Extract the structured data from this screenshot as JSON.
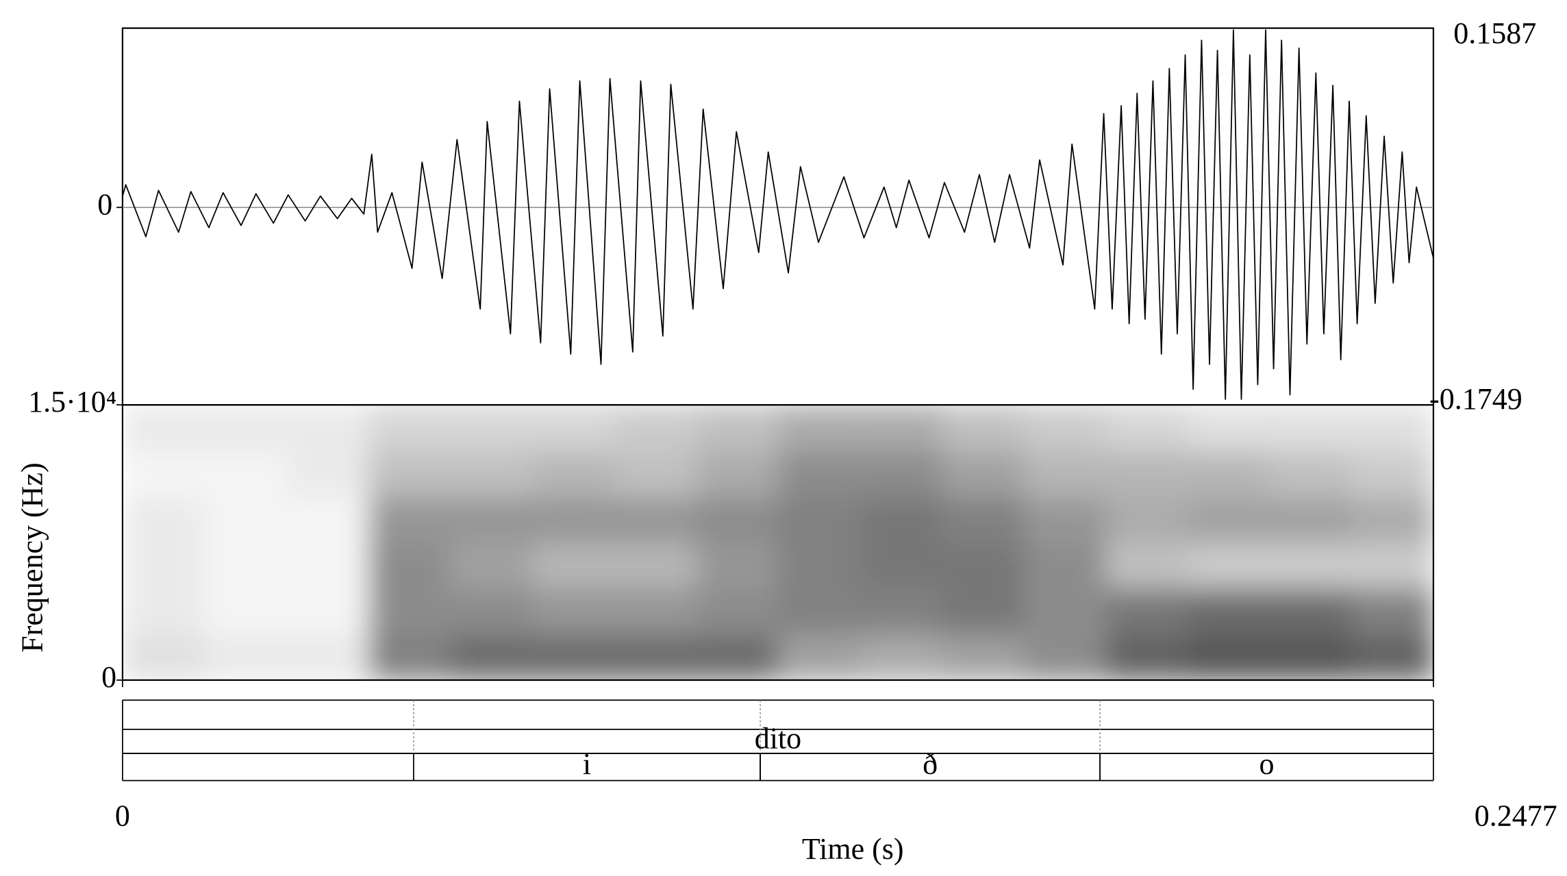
{
  "chart_data": [
    {
      "type": "line",
      "xlim": [
        0,
        0.2477
      ],
      "ylim": [
        -0.1749,
        0.1587
      ],
      "yticks": [
        0
      ],
      "color": "#000000",
      "x": [
        0,
        0.0006,
        0.0044,
        0.0068,
        0.0106,
        0.0129,
        0.0163,
        0.019,
        0.0224,
        0.0252,
        0.0285,
        0.0313,
        0.0345,
        0.0374,
        0.0406,
        0.0433,
        0.0456,
        0.0471,
        0.0482,
        0.0509,
        0.0547,
        0.0566,
        0.0604,
        0.0632,
        0.0676,
        0.0689,
        0.0733,
        0.075,
        0.079,
        0.0807,
        0.0847,
        0.0864,
        0.0904,
        0.0921,
        0.0964,
        0.0979,
        0.1021,
        0.1036,
        0.1078,
        0.1097,
        0.1135,
        0.116,
        0.1202,
        0.122,
        0.1258,
        0.1281,
        0.1315,
        0.1363,
        0.1401,
        0.1439,
        0.1462,
        0.1486,
        0.1524,
        0.1553,
        0.1591,
        0.1619,
        0.1648,
        0.1676,
        0.1714,
        0.1733,
        0.1777,
        0.1794,
        0.1837,
        0.1854,
        0.187,
        0.1887,
        0.1902,
        0.1917,
        0.1932,
        0.1947,
        0.1963,
        0.1978,
        0.1993,
        0.2008,
        0.2023,
        0.2039,
        0.2054,
        0.2069,
        0.2084,
        0.2099,
        0.2114,
        0.213,
        0.2145,
        0.216,
        0.2175,
        0.219,
        0.2206,
        0.2223,
        0.2238,
        0.2255,
        0.227,
        0.2287,
        0.2302,
        0.2318,
        0.2333,
        0.235,
        0.2367,
        0.2384,
        0.2401,
        0.2418,
        0.2431,
        0.2445,
        0.2477
      ],
      "values": [
        0.01,
        0.02,
        -0.026,
        0.015,
        -0.022,
        0.014,
        -0.018,
        0.013,
        -0.016,
        0.012,
        -0.014,
        0.011,
        -0.012,
        0.01,
        -0.01,
        0.008,
        -0.006,
        0.047,
        -0.022,
        0.013,
        -0.054,
        0.04,
        -0.063,
        0.06,
        -0.09,
        0.076,
        -0.112,
        0.094,
        -0.12,
        0.105,
        -0.13,
        0.112,
        -0.139,
        0.114,
        -0.128,
        0.112,
        -0.114,
        0.109,
        -0.09,
        0.087,
        -0.072,
        0.067,
        -0.04,
        0.049,
        -0.058,
        0.036,
        -0.031,
        0.027,
        -0.027,
        0.018,
        -0.018,
        0.024,
        -0.027,
        0.022,
        -0.022,
        0.029,
        -0.031,
        0.029,
        -0.036,
        0.042,
        -0.051,
        0.056,
        -0.09,
        0.083,
        -0.09,
        0.09,
        -0.103,
        0.101,
        -0.099,
        0.112,
        -0.13,
        0.123,
        -0.112,
        0.135,
        -0.161,
        0.148,
        -0.139,
        0.139,
        -0.17,
        0.157,
        -0.17,
        0.135,
        -0.157,
        0.157,
        -0.143,
        0.148,
        -0.166,
        0.141,
        -0.121,
        0.119,
        -0.112,
        0.108,
        -0.135,
        0.094,
        -0.103,
        0.081,
        -0.085,
        0.063,
        -0.067,
        0.049,
        -0.049,
        0.018,
        -0.045
      ]
    },
    {
      "type": "heatmap",
      "y_label": "Frequency (Hz)",
      "ylim": [
        0,
        15000
      ],
      "yticks": [
        {
          "value": 15000,
          "label": "1.5·10⁴"
        },
        0
      ],
      "time_bins": [
        0,
        0.0155,
        0.031,
        0.0464,
        0.0619,
        0.0774,
        0.0929,
        0.1084,
        0.1239,
        0.1393,
        0.1548,
        0.1703,
        0.1858,
        0.2013,
        0.2167,
        0.2322,
        0.2477
      ],
      "freq_bins": [
        0,
        2500,
        5000,
        7500,
        10000,
        12500,
        15000
      ],
      "intensity": [
        [
          0.15,
          0.1,
          0.1,
          0.6,
          0.7,
          0.7,
          0.7,
          0.7,
          0.45,
          0.4,
          0.45,
          0.55,
          0.75,
          0.8,
          0.8,
          0.75
        ],
        [
          0.1,
          0.05,
          0.05,
          0.55,
          0.55,
          0.5,
          0.5,
          0.55,
          0.6,
          0.6,
          0.65,
          0.55,
          0.65,
          0.7,
          0.7,
          0.6
        ],
        [
          0.1,
          0.05,
          0.05,
          0.55,
          0.45,
          0.35,
          0.35,
          0.5,
          0.6,
          0.65,
          0.65,
          0.55,
          0.3,
          0.25,
          0.25,
          0.25
        ],
        [
          0.1,
          0.05,
          0.05,
          0.5,
          0.5,
          0.5,
          0.5,
          0.55,
          0.6,
          0.65,
          0.6,
          0.5,
          0.4,
          0.45,
          0.45,
          0.4
        ],
        [
          0.05,
          0.05,
          0.1,
          0.3,
          0.3,
          0.35,
          0.3,
          0.4,
          0.55,
          0.55,
          0.45,
          0.35,
          0.35,
          0.35,
          0.3,
          0.25
        ],
        [
          0.1,
          0.1,
          0.1,
          0.2,
          0.2,
          0.2,
          0.25,
          0.3,
          0.4,
          0.4,
          0.3,
          0.25,
          0.2,
          0.15,
          0.15,
          0.15
        ]
      ]
    },
    {
      "type": "textgrid",
      "xlim": [
        0,
        0.2477
      ],
      "xticks": [
        0,
        0.2477
      ],
      "x_label": "Time (s)",
      "tiers": [
        {
          "intervals": [
            {
              "text": "dito",
              "xmin": 0,
              "xmax": 0.2477
            }
          ]
        },
        {
          "intervals": [
            {
              "text": "i",
              "xmin": 0.055,
              "xmax": 0.1205
            },
            {
              "text": "ð",
              "xmin": 0.1205,
              "xmax": 0.1847
            },
            {
              "text": "o",
              "xmin": 0.1847,
              "xmax": 0.2477
            }
          ]
        }
      ]
    }
  ]
}
